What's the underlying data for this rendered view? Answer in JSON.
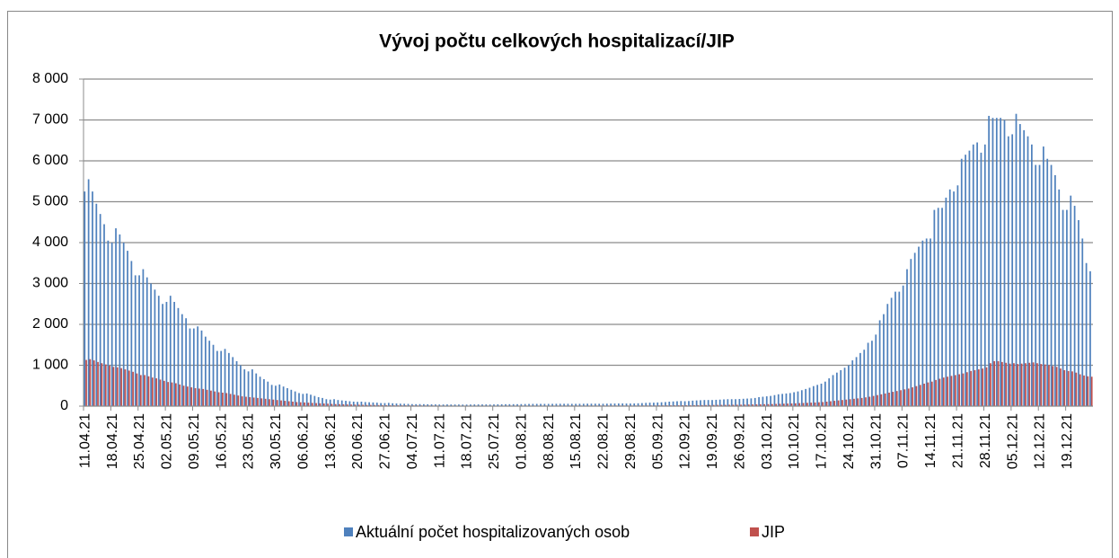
{
  "chart_data": {
    "type": "bar",
    "title": "Vývoj počtu celkových hospitalizací/JIP",
    "categories": [
      "11.04.21",
      null,
      null,
      null,
      null,
      null,
      null,
      "18.04.21",
      null,
      null,
      null,
      null,
      null,
      null,
      "25.04.21",
      null,
      null,
      null,
      null,
      null,
      null,
      "02.05.21",
      null,
      null,
      null,
      null,
      null,
      null,
      "09.05.21",
      null,
      null,
      null,
      null,
      null,
      null,
      "16.05.21",
      null,
      null,
      null,
      null,
      null,
      null,
      "23.05.21",
      null,
      null,
      null,
      null,
      null,
      null,
      "30.05.21",
      null,
      null,
      null,
      null,
      null,
      null,
      "06.06.21",
      null,
      null,
      null,
      null,
      null,
      null,
      "13.06.21",
      null,
      null,
      null,
      null,
      null,
      null,
      "20.06.21",
      null,
      null,
      null,
      null,
      null,
      null,
      "27.06.21",
      null,
      null,
      null,
      null,
      null,
      null,
      "04.07.21",
      null,
      null,
      null,
      null,
      null,
      null,
      "11.07.21",
      null,
      null,
      null,
      null,
      null,
      null,
      "18.07.21",
      null,
      null,
      null,
      null,
      null,
      null,
      "25.07.21",
      null,
      null,
      null,
      null,
      null,
      null,
      "01.08.21",
      null,
      null,
      null,
      null,
      null,
      null,
      "08.08.21",
      null,
      null,
      null,
      null,
      null,
      null,
      "15.08.21",
      null,
      null,
      null,
      null,
      null,
      null,
      "22.08.21",
      null,
      null,
      null,
      null,
      null,
      null,
      "29.08.21",
      null,
      null,
      null,
      null,
      null,
      null,
      "05.09.21",
      null,
      null,
      null,
      null,
      null,
      null,
      "12.09.21",
      null,
      null,
      null,
      null,
      null,
      null,
      "19.09.21",
      null,
      null,
      null,
      null,
      null,
      null,
      "26.09.21",
      null,
      null,
      null,
      null,
      null,
      null,
      "03.10.21",
      null,
      null,
      null,
      null,
      null,
      null,
      "10.10.21",
      null,
      null,
      null,
      null,
      null,
      null,
      "17.10.21",
      null,
      null,
      null,
      null,
      null,
      null,
      "24.10.21",
      null,
      null,
      null,
      null,
      null,
      null,
      "31.10.21",
      null,
      null,
      null,
      null,
      null,
      null,
      "07.11.21",
      null,
      null,
      null,
      null,
      null,
      null,
      "14.11.21",
      null,
      null,
      null,
      null,
      null,
      null,
      "21.11.21",
      null,
      null,
      null,
      null,
      null,
      null,
      "28.11.21",
      null,
      null,
      null,
      null,
      null,
      null,
      "05.12.21",
      null,
      null,
      null,
      null,
      null,
      null,
      "12.12.21",
      null,
      null,
      null,
      null,
      null,
      null,
      "19.12.21",
      null,
      null,
      null,
      null,
      null,
      null
    ],
    "series": [
      {
        "name": "Aktuální počet hospitalizovaných osob",
        "color": "#4f81bd",
        "values": [
          5250,
          5550,
          5250,
          4950,
          4700,
          4450,
          4050,
          4000,
          4350,
          4200,
          4000,
          3800,
          3550,
          3200,
          3200,
          3350,
          3150,
          3000,
          2850,
          2700,
          2500,
          2550,
          2700,
          2550,
          2400,
          2250,
          2150,
          1900,
          1900,
          1950,
          1850,
          1700,
          1600,
          1500,
          1350,
          1350,
          1400,
          1300,
          1200,
          1100,
          1000,
          900,
          850,
          900,
          800,
          720,
          660,
          600,
          520,
          500,
          530,
          480,
          440,
          400,
          360,
          320,
          300,
          310,
          280,
          250,
          220,
          200,
          170,
          160,
          170,
          150,
          140,
          130,
          120,
          110,
          105,
          110,
          100,
          95,
          90,
          85,
          75,
          75,
          80,
          70,
          65,
          60,
          58,
          55,
          50,
          48,
          50,
          48,
          46,
          44,
          42,
          40,
          40,
          42,
          40,
          40,
          40,
          38,
          38,
          40,
          42,
          42,
          42,
          42,
          40,
          42,
          45,
          46,
          47,
          48,
          48,
          48,
          50,
          52,
          54,
          55,
          55,
          55,
          55,
          55,
          56,
          57,
          58,
          58,
          58,
          56,
          56,
          57,
          58,
          60,
          60,
          60,
          58,
          58,
          60,
          62,
          64,
          65,
          66,
          64,
          64,
          66,
          70,
          75,
          80,
          85,
          85,
          90,
          95,
          100,
          110,
          115,
          120,
          125,
          120,
          125,
          135,
          140,
          145,
          150,
          150,
          150,
          155,
          160,
          165,
          170,
          170,
          170,
          175,
          180,
          185,
          190,
          200,
          220,
          230,
          240,
          250,
          270,
          290,
          300,
          310,
          320,
          340,
          360,
          390,
          420,
          450,
          490,
          520,
          550,
          600,
          680,
          760,
          820,
          880,
          940,
          1000,
          1120,
          1200,
          1300,
          1380,
          1550,
          1600,
          1750,
          2100,
          2250,
          2500,
          2650,
          2800,
          2800,
          2950,
          3350,
          3600,
          3750,
          3900,
          4050,
          4100,
          4100,
          4800,
          4850,
          4850,
          5100,
          5300,
          5250,
          5400,
          6050,
          6150,
          6250,
          6400,
          6450,
          6200,
          6400,
          7100,
          7050,
          7050,
          7050,
          7000,
          6600,
          6650,
          7150,
          6900,
          6750,
          6600,
          6400,
          5900,
          5900,
          6350,
          6050,
          5900,
          5650,
          5300,
          4800,
          4800,
          5150,
          4900,
          4550,
          4100,
          3500,
          3300
        ]
      },
      {
        "name": "JIP",
        "color": "#c0504d",
        "values": [
          1130,
          1150,
          1120,
          1080,
          1050,
          1020,
          990,
          960,
          950,
          930,
          900,
          870,
          840,
          800,
          760,
          760,
          730,
          700,
          680,
          650,
          620,
          590,
          580,
          560,
          530,
          500,
          480,
          460,
          440,
          430,
          420,
          400,
          380,
          360,
          340,
          330,
          320,
          300,
          280,
          260,
          240,
          230,
          220,
          210,
          200,
          190,
          180,
          170,
          160,
          150,
          140,
          130,
          120,
          110,
          100,
          95,
          90,
          85,
          80,
          75,
          70,
          65,
          60,
          55,
          50,
          48,
          45,
          42,
          40,
          38,
          35,
          33,
          30,
          30,
          28,
          26,
          25,
          24,
          22,
          20,
          20,
          20,
          19,
          18,
          18,
          17,
          16,
          16,
          15,
          15,
          14,
          14,
          13,
          13,
          13,
          12,
          12,
          12,
          12,
          12,
          12,
          12,
          12,
          12,
          12,
          12,
          12,
          12,
          13,
          13,
          13,
          13,
          13,
          13,
          13,
          13,
          13,
          13,
          13,
          13,
          13,
          13,
          14,
          14,
          14,
          14,
          14,
          14,
          14,
          14,
          14,
          14,
          15,
          15,
          15,
          15,
          15,
          15,
          15,
          15,
          15,
          15,
          15,
          16,
          16,
          17,
          17,
          18,
          18,
          19,
          20,
          20,
          21,
          22,
          22,
          23,
          24,
          25,
          26,
          27,
          28,
          29,
          30,
          31,
          32,
          33,
          34,
          35,
          36,
          38,
          40,
          42,
          44,
          46,
          48,
          50,
          52,
          55,
          58,
          60,
          63,
          66,
          70,
          74,
          78,
          82,
          86,
          90,
          95,
          100,
          110,
          120,
          130,
          140,
          150,
          160,
          170,
          180,
          190,
          200,
          215,
          230,
          250,
          270,
          290,
          310,
          330,
          350,
          370,
          390,
          410,
          430,
          460,
          490,
          520,
          550,
          580,
          600,
          640,
          670,
          700,
          720,
          740,
          760,
          780,
          800,
          830,
          860,
          880,
          900,
          920,
          950,
          1050,
          1100,
          1100,
          1080,
          1060,
          1040,
          1050,
          1030,
          1040,
          1050,
          1060,
          1070,
          1050,
          1030,
          1020,
          1000,
          980,
          960,
          920,
          880,
          860,
          850,
          820,
          780,
          750,
          730,
          720
        ]
      }
    ],
    "ylim": [
      0,
      8000
    ],
    "yticks": [
      0,
      {
        "value": 1000,
        "label": "1 000"
      },
      {
        "value": 2000,
        "label": "2 000"
      },
      {
        "value": 3000,
        "label": "3 000"
      },
      {
        "value": 4000,
        "label": "4 000"
      },
      {
        "value": 5000,
        "label": "5 000"
      },
      {
        "value": 6000,
        "label": "6 000"
      },
      {
        "value": 7000,
        "label": "7 000"
      },
      {
        "value": 8000,
        "label": "8 000"
      }
    ],
    "grid": true,
    "legend": "bottom"
  }
}
